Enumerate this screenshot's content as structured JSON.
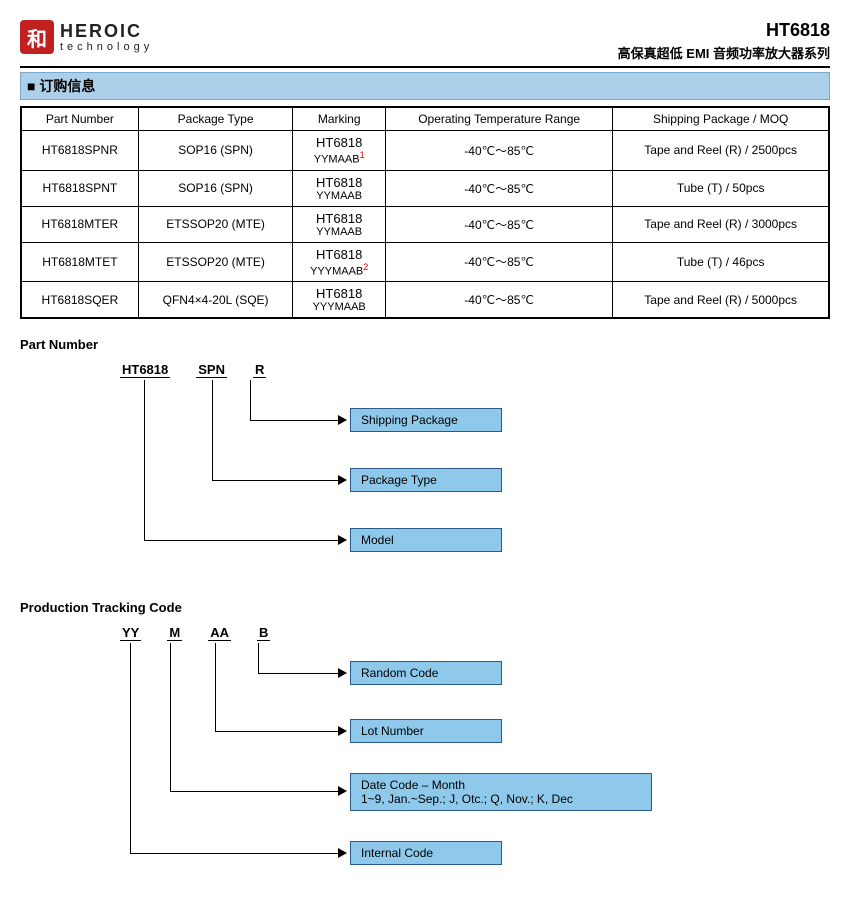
{
  "header": {
    "logo_glyph": "和",
    "logo_name": "HEROIC",
    "logo_sub": "technology",
    "part_id": "HT6818",
    "subtitle_cn": "高保真超低 EMI 音频功率放大器系列"
  },
  "section_title": "订购信息",
  "table": {
    "columns": [
      "Part Number",
      "Package Type",
      "Marking",
      "Operating Temperature Range",
      "Shipping Package / MOQ"
    ],
    "rows": [
      {
        "pn": "HT6818SPNR",
        "pkg": "SOP16 (SPN)",
        "mark_main": "HT6818",
        "mark_sub": "YYMAAB",
        "mark_sup": "1",
        "temp": "-40℃～85℃",
        "ship": "Tape and Reel (R) / 2500pcs"
      },
      {
        "pn": "HT6818SPNT",
        "pkg": "SOP16 (SPN)",
        "mark_main": "HT6818",
        "mark_sub": "YYMAAB",
        "mark_sup": "",
        "temp": "-40℃～85℃",
        "ship": "Tube (T) / 50pcs"
      },
      {
        "pn": "HT6818MTER",
        "pkg": "ETSSOP20 (MTE)",
        "mark_main": "HT6818",
        "mark_sub": "YYMAAB",
        "mark_sup": "",
        "temp": "-40℃～85℃",
        "ship": "Tape and Reel (R) / 3000pcs"
      },
      {
        "pn": "HT6818MTET",
        "pkg": "ETSSOP20 (MTE)",
        "mark_main": "HT6818",
        "mark_sub": "YYYMAAB",
        "mark_sup": "2",
        "temp": "-40℃～85℃",
        "ship": "Tube (T) / 46pcs"
      },
      {
        "pn": "HT6818SQER",
        "pkg": "QFN4×4-20L (SQE)",
        "mark_main": "HT6818",
        "mark_sub": "YYYMAAB",
        "mark_sup": "",
        "temp": "-40℃～85℃",
        "ship": "Tape and Reel (R) / 5000pcs"
      }
    ]
  },
  "pn_diagram": {
    "heading": "Part Number",
    "segs": [
      "HT6818",
      "SPN",
      "R"
    ],
    "boxes": [
      "Shipping Package",
      "Package Type",
      "Model"
    ]
  },
  "track_diagram": {
    "heading": "Production Tracking Code",
    "segs": [
      "YY",
      "M",
      "AA",
      "B"
    ],
    "boxes": [
      "Random Code",
      "Lot Number",
      "Date Code – Month\n1~9, Jan.~Sep.; J, Otc.; Q, Nov.; K, Dec",
      "Internal Code"
    ]
  },
  "colors": {
    "blue_box_bg": "#8ec8ea",
    "blue_box_border": "#2a5a8a",
    "section_bg": "#add0ea",
    "logo_bg": "#c02020",
    "sup_color": "#c00"
  }
}
